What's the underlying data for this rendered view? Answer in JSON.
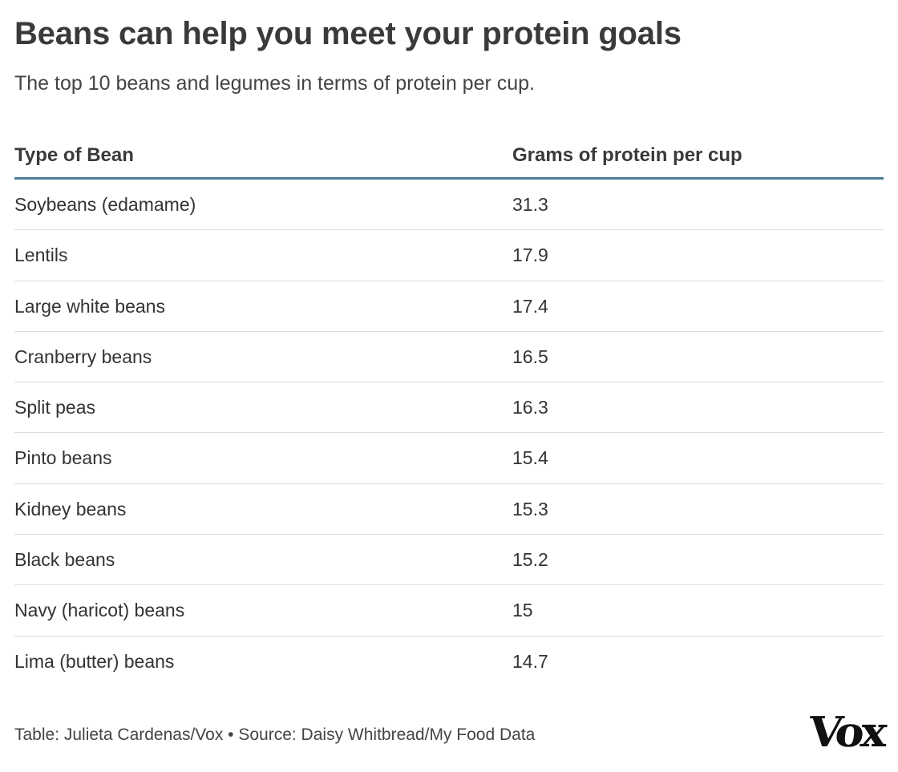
{
  "title": "Beans can help you meet your protein goals",
  "subtitle": "The top 10 beans and legumes in terms of protein per cup.",
  "columns": [
    "Type of Bean",
    "Grams of protein per cup"
  ],
  "rows": [
    {
      "bean": "Soybeans (edamame)",
      "protein": "31.3"
    },
    {
      "bean": "Lentils",
      "protein": "17.9"
    },
    {
      "bean": "Large white beans",
      "protein": "17.4"
    },
    {
      "bean": "Cranberry beans",
      "protein": "16.5"
    },
    {
      "bean": "Split peas",
      "protein": "16.3"
    },
    {
      "bean": "Pinto beans",
      "protein": "15.4"
    },
    {
      "bean": "Kidney beans",
      "protein": "15.3"
    },
    {
      "bean": "Black beans",
      "protein": "15.2"
    },
    {
      "bean": "Navy (haricot) beans",
      "protein": "15"
    },
    {
      "bean": "Lima (butter) beans",
      "protein": "14.7"
    }
  ],
  "footer": "Table: Julieta Cardenas/Vox • Source: Daisy Whitbread/My Food Data",
  "logo": "Vox",
  "colors": {
    "header_rule": "#4d7c99",
    "row_rule": "#dddddd",
    "text": "#333333"
  },
  "chart_data": {
    "type": "table",
    "title": "Beans can help you meet your protein goals",
    "subtitle": "The top 10 beans and legumes in terms of protein per cup.",
    "columns": [
      "Type of Bean",
      "Grams of protein per cup"
    ],
    "categories": [
      "Soybeans (edamame)",
      "Lentils",
      "Large white beans",
      "Cranberry beans",
      "Split peas",
      "Pinto beans",
      "Kidney beans",
      "Black beans",
      "Navy (haricot) beans",
      "Lima (butter) beans"
    ],
    "values": [
      31.3,
      17.9,
      17.4,
      16.5,
      16.3,
      15.4,
      15.3,
      15.2,
      15,
      14.7
    ]
  }
}
